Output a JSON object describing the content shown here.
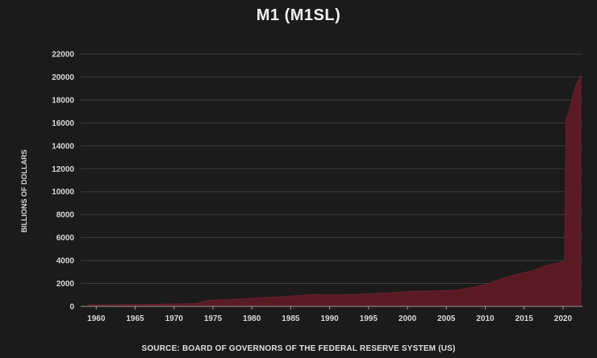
{
  "chart_data": {
    "type": "area",
    "title": "M1 (M1SL)",
    "ylabel": "BILLIONS OF DOLLARS",
    "xlabel": "",
    "source": "SOURCE: BOARD OF GOVERNORS OF THE FEDERAL RESERVE SYSTEM (US)",
    "xlim": [
      1958,
      2022.5
    ],
    "ylim": [
      0,
      22000
    ],
    "x_ticks": [
      1960,
      1965,
      1970,
      1975,
      1980,
      1985,
      1990,
      1995,
      2000,
      2005,
      2010,
      2015,
      2020
    ],
    "y_ticks": [
      0,
      2000,
      4000,
      6000,
      8000,
      10000,
      12000,
      14000,
      16000,
      18000,
      20000,
      22000
    ],
    "grid": "horizontal",
    "legend": "none",
    "series": [
      {
        "color": "#5a1a24",
        "x": [
          1959,
          1965,
          1970,
          1973,
          1974,
          1975,
          1978,
          1980,
          1983,
          1986,
          1988,
          1990,
          1993,
          1995,
          1998,
          2000,
          2003,
          2006,
          2008,
          2010,
          2012,
          2014,
          2016,
          2018,
          2019.5,
          2020.2,
          2020.4,
          2020.8,
          2021.3,
          2021.8,
          2022.3
        ],
        "y": [
          140,
          170,
          210,
          260,
          500,
          540,
          620,
          700,
          820,
          950,
          1050,
          1000,
          1050,
          1100,
          1200,
          1300,
          1350,
          1400,
          1600,
          1900,
          2400,
          2800,
          3100,
          3600,
          3800,
          4000,
          16400,
          17000,
          18500,
          19500,
          20100
        ]
      }
    ]
  }
}
